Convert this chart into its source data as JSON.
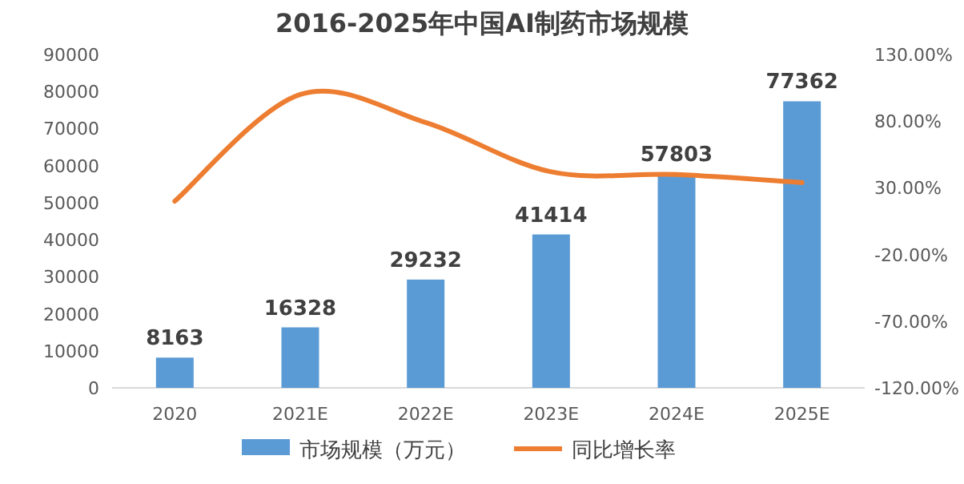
{
  "chart_data": {
    "type": "bar",
    "title": "2016-2025年中国AI制药市场规模",
    "categories": [
      "2020",
      "2021E",
      "2022E",
      "2023E",
      "2024E",
      "2025E"
    ],
    "series": [
      {
        "name": "市场规模（万元）",
        "color": "#5b9bd5",
        "values": [
          8163,
          16328,
          29232,
          41414,
          57803,
          77362
        ],
        "value_labels": [
          "8163",
          "16328",
          "29232",
          "41414",
          "57803",
          "77362"
        ]
      },
      {
        "name": "同比增长率",
        "type": "line",
        "axis": "y2",
        "color": "#ed7d31",
        "values": [
          20,
          100,
          79,
          42,
          40,
          34
        ]
      }
    ],
    "ylim": [
      0,
      90000
    ],
    "yticks": [
      0,
      10000,
      20000,
      30000,
      40000,
      50000,
      60000,
      70000,
      80000,
      90000
    ],
    "y2lim": [
      -120,
      130
    ],
    "y2ticks": [
      {
        "value": -120,
        "label": "-120.00%"
      },
      {
        "value": -70,
        "label": "-70.00%"
      },
      {
        "value": -20,
        "label": "-20.00%"
      },
      {
        "value": 30,
        "label": "30.00%"
      },
      {
        "value": 80,
        "label": "80.00%"
      },
      {
        "value": 130,
        "label": "130.00%"
      }
    ],
    "legend": "bottom",
    "grid": false
  }
}
